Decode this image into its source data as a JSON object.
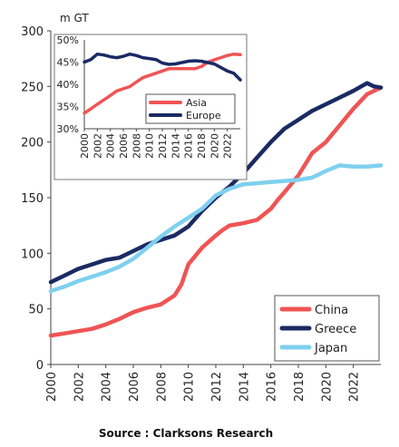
{
  "chart_data": [
    {
      "type": "line",
      "unit_label": "m GT",
      "x_ticks": [
        "2000",
        "2002",
        "2004",
        "2006",
        "2008",
        "2010",
        "2012",
        "2014",
        "2016",
        "2018",
        "2020",
        "2022"
      ],
      "y_ticks": [
        "0",
        "50",
        "100",
        "150",
        "200",
        "250",
        "300"
      ],
      "xlim": [
        2000,
        2024
      ],
      "ylim": [
        0,
        300
      ],
      "grid": false,
      "legend_position": "bottom-right",
      "source": "Source : Clarksons Research",
      "series": [
        {
          "name": "China",
          "color": "#f05454",
          "x": [
            2000,
            2001,
            2002,
            2003,
            2004,
            2005,
            2006,
            2007,
            2008,
            2009,
            2009.5,
            2010,
            2011,
            2012,
            2012.5,
            2013,
            2014,
            2015,
            2016,
            2016.5,
            2017,
            2018,
            2019,
            2020,
            2021,
            2022,
            2023,
            2024
          ],
          "y": [
            26,
            28,
            30,
            32,
            36,
            41,
            47,
            51,
            54,
            62,
            72,
            90,
            105,
            116,
            121,
            125,
            127,
            130,
            140,
            148,
            155,
            170,
            190,
            200,
            215,
            230,
            243,
            249
          ]
        },
        {
          "name": "Greece",
          "color": "#1a2a63",
          "x": [
            2000,
            2001,
            2002,
            2003,
            2004,
            2005,
            2006,
            2007,
            2008,
            2009,
            2010,
            2011,
            2012,
            2013,
            2014,
            2015,
            2016,
            2017,
            2018,
            2019,
            2020,
            2021,
            2022,
            2023,
            2023.5,
            2024
          ],
          "y": [
            74,
            80,
            86,
            90,
            94,
            96,
            102,
            108,
            112,
            116,
            124,
            138,
            150,
            160,
            172,
            186,
            200,
            212,
            220,
            228,
            234,
            240,
            246,
            253,
            250,
            249
          ]
        },
        {
          "name": "Japan",
          "color": "#7fd0ee",
          "x": [
            2000,
            2001,
            2002,
            2003,
            2004,
            2005,
            2006,
            2007,
            2008,
            2009,
            2010,
            2011,
            2012,
            2013,
            2014,
            2015,
            2016,
            2017,
            2018,
            2019,
            2020,
            2021,
            2022,
            2023,
            2024
          ],
          "y": [
            66,
            70,
            75,
            79,
            83,
            88,
            95,
            105,
            115,
            124,
            132,
            140,
            152,
            158,
            162,
            163,
            164,
            165,
            166,
            168,
            174,
            179,
            178,
            178,
            179
          ]
        }
      ]
    },
    {
      "type": "line",
      "x_ticks": [
        "2000",
        "2002",
        "2004",
        "2006",
        "2008",
        "2010",
        "2012",
        "2014",
        "2016",
        "2018",
        "2020",
        "2022"
      ],
      "y_ticks": [
        "30%",
        "35%",
        "40%",
        "45%",
        "50%"
      ],
      "xlim": [
        2000,
        2024
      ],
      "ylim": [
        30,
        50
      ],
      "grid": false,
      "legend_position": "bottom-right",
      "series": [
        {
          "name": "Asia",
          "color": "#f05454",
          "x": [
            2000,
            2001,
            2002,
            2003,
            2004,
            2005,
            2006,
            2007,
            2008,
            2009,
            2010,
            2011,
            2012,
            2013,
            2014,
            2015,
            2016,
            2017,
            2018,
            2019,
            2020,
            2021,
            2022,
            2023,
            2024
          ],
          "y": [
            33.5,
            34.5,
            35.5,
            36.5,
            37.5,
            38.5,
            39.0,
            39.5,
            40.5,
            41.5,
            42.0,
            42.5,
            43.0,
            43.5,
            43.5,
            43.5,
            43.5,
            43.5,
            44.0,
            45.0,
            45.5,
            46.0,
            46.5,
            46.8,
            46.7
          ]
        },
        {
          "name": "Europe",
          "color": "#1a2a63",
          "x": [
            2000,
            2001,
            2002,
            2003,
            2004,
            2005,
            2006,
            2007,
            2008,
            2009,
            2010,
            2011,
            2012,
            2013,
            2014,
            2015,
            2016,
            2017,
            2018,
            2019,
            2020,
            2021,
            2022,
            2023,
            2024
          ],
          "y": [
            45.0,
            45.6,
            46.8,
            46.6,
            46.2,
            46.0,
            46.3,
            46.8,
            46.5,
            46.0,
            45.8,
            45.6,
            44.8,
            44.5,
            44.6,
            44.9,
            45.2,
            45.3,
            45.2,
            44.9,
            44.6,
            43.8,
            43.0,
            42.5,
            41.0
          ]
        }
      ]
    }
  ]
}
